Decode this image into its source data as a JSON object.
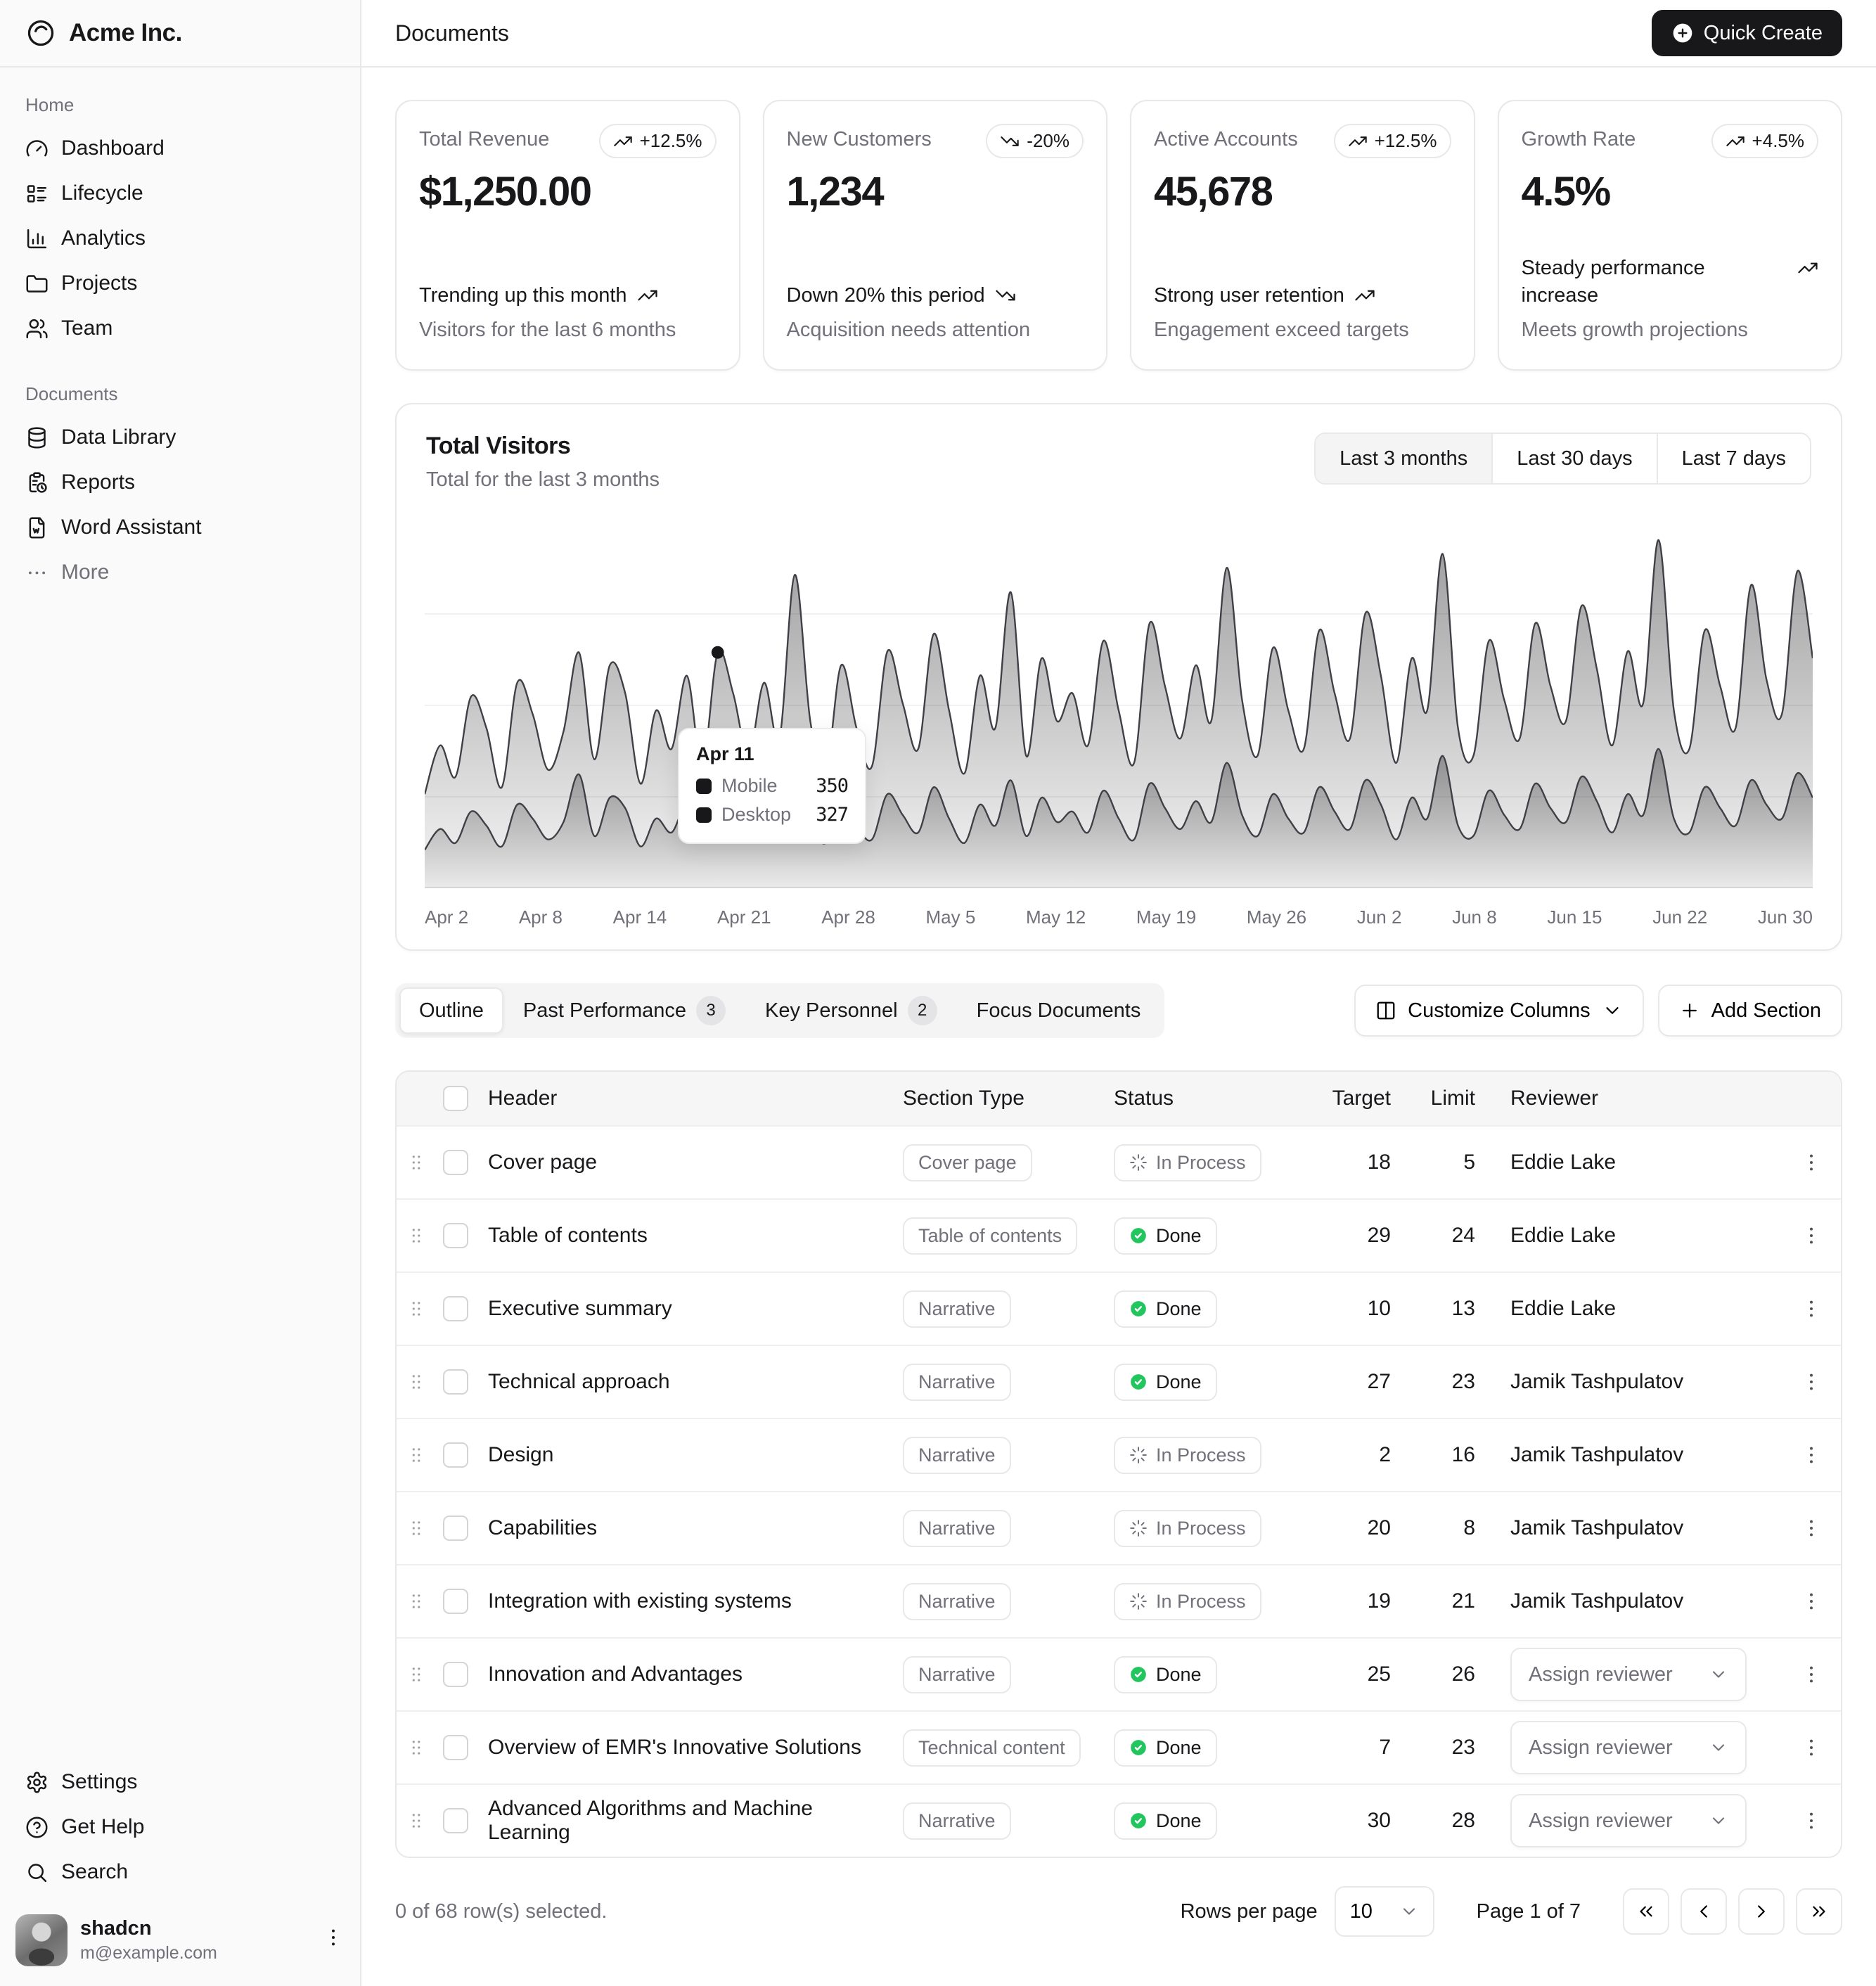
{
  "brand": {
    "name": "Acme Inc.",
    "logo_icon": "acme-logo"
  },
  "header": {
    "title": "Documents",
    "quick_create_label": "Quick Create"
  },
  "sidebar": {
    "sections": [
      {
        "label": "Home",
        "items": [
          {
            "label": "Dashboard",
            "icon": "gauge"
          },
          {
            "label": "Lifecycle",
            "icon": "list-details"
          },
          {
            "label": "Analytics",
            "icon": "chart-column"
          },
          {
            "label": "Projects",
            "icon": "folder"
          },
          {
            "label": "Team",
            "icon": "users"
          }
        ]
      },
      {
        "label": "Documents",
        "items": [
          {
            "label": "Data Library",
            "icon": "database"
          },
          {
            "label": "Reports",
            "icon": "clipboard-clock"
          },
          {
            "label": "Word Assistant",
            "icon": "file-w"
          },
          {
            "label": "More",
            "icon": "dots-h",
            "muted": true
          }
        ]
      }
    ],
    "footer_items": [
      {
        "label": "Settings",
        "icon": "settings"
      },
      {
        "label": "Get Help",
        "icon": "circle-help"
      },
      {
        "label": "Search",
        "icon": "search"
      }
    ],
    "user": {
      "name": "shadcn",
      "email": "m@example.com"
    }
  },
  "cards": [
    {
      "label": "Total Revenue",
      "badge": "+12.5%",
      "trend": "up",
      "value": "$1,250.00",
      "line1": "Trending up this month",
      "line2": "Visitors for the last 6 months"
    },
    {
      "label": "New Customers",
      "badge": "-20%",
      "trend": "down",
      "value": "1,234",
      "line1": "Down 20% this period",
      "line2": "Acquisition needs attention"
    },
    {
      "label": "Active Accounts",
      "badge": "+12.5%",
      "trend": "up",
      "value": "45,678",
      "line1": "Strong user retention",
      "line2": "Engagement exceed targets"
    },
    {
      "label": "Growth Rate",
      "badge": "+4.5%",
      "trend": "up",
      "value": "4.5%",
      "line1": "Steady performance increase",
      "line2": "Meets growth projections"
    }
  ],
  "chart": {
    "title": "Total Visitors",
    "subtitle": "Total for the last 3 months",
    "ranges": [
      "Last 3 months",
      "Last 30 days",
      "Last 7 days"
    ],
    "active_range": "Last 3 months",
    "x_labels": [
      "Apr 2",
      "Apr 8",
      "Apr 14",
      "Apr 21",
      "Apr 28",
      "May 5",
      "May 12",
      "May 19",
      "May 26",
      "Jun 2",
      "Jun 8",
      "Jun 15",
      "Jun 22",
      "Jun 30"
    ],
    "tooltip": {
      "date": "Apr 11",
      "rows": [
        {
          "label": "Mobile",
          "value": "350"
        },
        {
          "label": "Desktop",
          "value": "327"
        }
      ]
    }
  },
  "chart_data": {
    "type": "area",
    "stacked": true,
    "title": "Total Visitors",
    "x_labels": [
      "Apr 2",
      "Apr 8",
      "Apr 14",
      "Apr 21",
      "Apr 28",
      "May 5",
      "May 12",
      "May 19",
      "May 26",
      "Jun 2",
      "Jun 8",
      "Jun 15",
      "Jun 22",
      "Jun 30"
    ],
    "ylim": [
      0,
      1050
    ],
    "highlight_index": 19,
    "series": [
      {
        "name": "Desktop",
        "values": [
          110,
          170,
          130,
          220,
          180,
          120,
          240,
          200,
          140,
          190,
          327,
          150,
          260,
          230,
          120,
          200,
          160,
          240,
          140,
          327,
          220,
          150,
          230,
          170,
          340,
          190,
          130,
          250,
          180,
          140,
          270,
          210,
          160,
          290,
          200,
          130,
          240,
          180,
          310,
          150,
          260,
          190,
          220,
          160,
          280,
          200,
          140,
          300,
          230,
          170,
          250,
          190,
          360,
          210,
          150,
          270,
          200,
          160,
          290,
          220,
          170,
          310,
          240,
          140,
          260,
          200,
          380,
          180,
          150,
          280,
          210,
          170,
          300,
          230,
          190,
          320,
          250,
          160,
          270,
          210,
          400,
          200,
          160,
          290,
          230,
          180,
          310,
          240,
          200,
          330,
          260
        ]
      },
      {
        "name": "Mobile",
        "values": [
          160,
          240,
          190,
          330,
          280,
          170,
          350,
          300,
          200,
          260,
          350,
          220,
          380,
          330,
          180,
          310,
          240,
          370,
          210,
          350,
          340,
          230,
          360,
          260,
          560,
          290,
          200,
          390,
          280,
          210,
          410,
          320,
          240,
          440,
          310,
          200,
          370,
          280,
          540,
          230,
          400,
          290,
          340,
          250,
          430,
          310,
          220,
          460,
          350,
          260,
          390,
          290,
          560,
          330,
          230,
          420,
          310,
          240,
          450,
          340,
          260,
          480,
          370,
          220,
          400,
          310,
          580,
          280,
          230,
          430,
          330,
          260,
          460,
          350,
          290,
          490,
          380,
          250,
          410,
          320,
          600,
          310,
          240,
          450,
          350,
          280,
          560,
          360,
          300,
          580,
          400
        ]
      }
    ]
  },
  "toolbar": {
    "tabs": [
      {
        "label": "Outline",
        "active": true
      },
      {
        "label": "Past Performance",
        "count": "3"
      },
      {
        "label": "Key Personnel",
        "count": "2"
      },
      {
        "label": "Focus Documents"
      }
    ],
    "customize_label": "Customize Columns",
    "add_section_label": "Add Section"
  },
  "table": {
    "columns": [
      "Header",
      "Section Type",
      "Status",
      "Target",
      "Limit",
      "Reviewer"
    ],
    "assign_label": "Assign reviewer",
    "rows": [
      {
        "header": "Cover page",
        "type": "Cover page",
        "status": "In Process",
        "target": "18",
        "limit": "5",
        "reviewer": "Eddie Lake"
      },
      {
        "header": "Table of contents",
        "type": "Table of contents",
        "status": "Done",
        "target": "29",
        "limit": "24",
        "reviewer": "Eddie Lake"
      },
      {
        "header": "Executive summary",
        "type": "Narrative",
        "status": "Done",
        "target": "10",
        "limit": "13",
        "reviewer": "Eddie Lake"
      },
      {
        "header": "Technical approach",
        "type": "Narrative",
        "status": "Done",
        "target": "27",
        "limit": "23",
        "reviewer": "Jamik Tashpulatov"
      },
      {
        "header": "Design",
        "type": "Narrative",
        "status": "In Process",
        "target": "2",
        "limit": "16",
        "reviewer": "Jamik Tashpulatov"
      },
      {
        "header": "Capabilities",
        "type": "Narrative",
        "status": "In Process",
        "target": "20",
        "limit": "8",
        "reviewer": "Jamik Tashpulatov"
      },
      {
        "header": "Integration with existing systems",
        "type": "Narrative",
        "status": "In Process",
        "target": "19",
        "limit": "21",
        "reviewer": "Jamik Tashpulatov"
      },
      {
        "header": "Innovation and Advantages",
        "type": "Narrative",
        "status": "Done",
        "target": "25",
        "limit": "26",
        "reviewer": null
      },
      {
        "header": "Overview of EMR's Innovative Solutions",
        "type": "Technical content",
        "status": "Done",
        "target": "7",
        "limit": "23",
        "reviewer": null
      },
      {
        "header": "Advanced Algorithms and Machine Learning",
        "type": "Narrative",
        "status": "Done",
        "target": "30",
        "limit": "28",
        "reviewer": null
      }
    ]
  },
  "footer": {
    "selected_text": "0 of 68 row(s) selected.",
    "rows_per_page_label": "Rows per page",
    "rows_per_page": "10",
    "page_text": "Page 1 of 7"
  },
  "colors": {
    "accent_green": "#22c55e",
    "primary": "#18181b",
    "muted": "#71717a",
    "border": "#e8e8e8"
  }
}
